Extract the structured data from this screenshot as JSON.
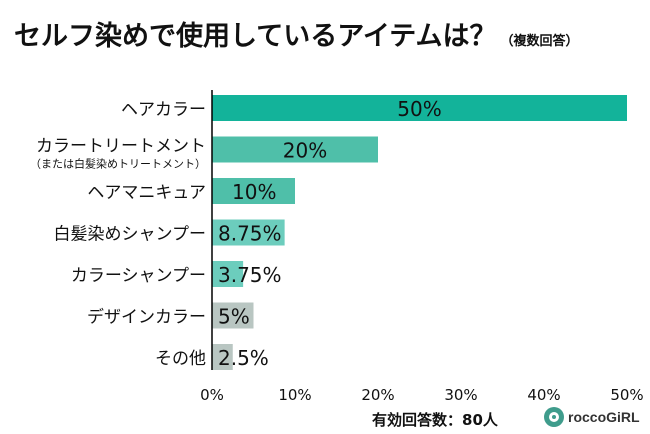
{
  "header": {
    "title": "セルフ染めで使用しているアイテムは？",
    "note": "（複数回答）"
  },
  "footer": {
    "respondents": "有効回答数：80人",
    "brand": "roccoGiRL"
  },
  "colors": {
    "bar_main": "#13b39a",
    "bar_second": "#4fbfa9",
    "bar_teal": "#5cc2b0",
    "bar_light": "#6ccdbd",
    "bar_gray": "#b9c6c2",
    "axis": "#000000"
  },
  "chart_data": {
    "type": "bar",
    "orientation": "horizontal",
    "categories": [
      "ヘアカラー",
      "カラートリートメント",
      "ヘアマニキュア",
      "白髪染めシャンプー",
      "カラーシャンプー",
      "デザインカラー",
      "その他"
    ],
    "category_notes": [
      "",
      "（または白髪染めトリートメント）",
      "",
      "",
      "",
      "",
      ""
    ],
    "values": [
      50,
      20,
      10,
      8.75,
      3.75,
      5,
      2.5
    ],
    "value_labels": [
      "50%",
      "20%",
      "10%",
      "8.75%",
      "3.75%",
      "5%",
      "2.5%"
    ],
    "bar_colors": [
      "#13b39a",
      "#4fbfa9",
      "#4fbfa9",
      "#6ccdbd",
      "#6ccdbd",
      "#b9c6c2",
      "#b9c6c2"
    ],
    "xlim": [
      0,
      50
    ],
    "xticks": [
      0,
      10,
      20,
      30,
      40,
      50
    ],
    "xtick_labels": [
      "0%",
      "10%",
      "20%",
      "30%",
      "40%",
      "50%"
    ],
    "grid": false,
    "legend": "none"
  }
}
